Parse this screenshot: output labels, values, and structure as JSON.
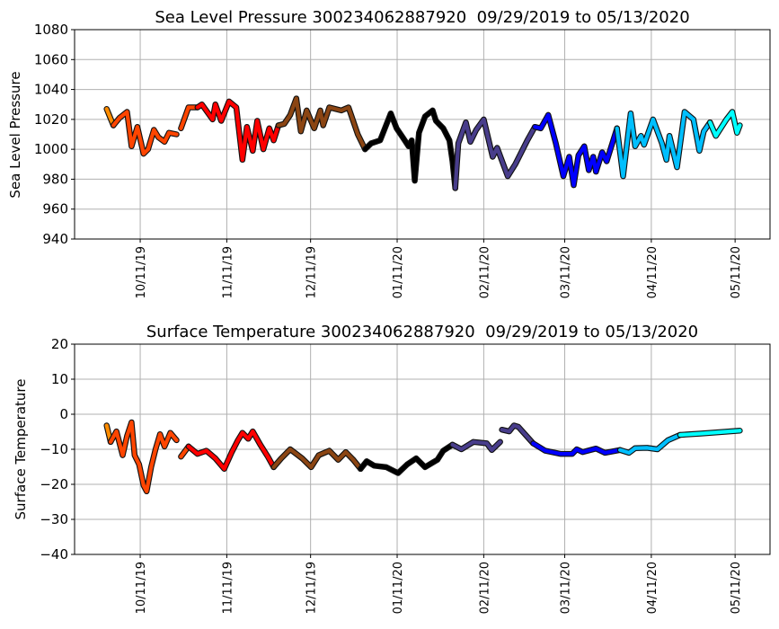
{
  "chart_data": [
    {
      "type": "scatter",
      "title": "Sea Level Pressure 300234062887920  09/29/2019 to 05/13/2020",
      "xlabel": "",
      "ylabel": "Sea Level Pressure",
      "x_units": "days since 09/29/2019",
      "xlim": [
        -11.5,
        237.5
      ],
      "ylim": [
        940,
        1080
      ],
      "yticks": [
        940,
        960,
        980,
        1000,
        1020,
        1040,
        1060,
        1080
      ],
      "xticks": [
        {
          "day": 12,
          "label": "10/11/19"
        },
        {
          "day": 43,
          "label": "11/11/19"
        },
        {
          "day": 73,
          "label": "12/11/19"
        },
        {
          "day": 104,
          "label": "01/11/20"
        },
        {
          "day": 135,
          "label": "02/11/20"
        },
        {
          "day": 164,
          "label": "03/11/20"
        },
        {
          "day": 195,
          "label": "04/11/20"
        },
        {
          "day": 225,
          "label": "05/11/20"
        }
      ],
      "grid": true,
      "series": [
        {
          "name": "orange",
          "color": "#ff8c00",
          "points": [
            [
              0,
              1027
            ],
            [
              2.4,
              1016
            ]
          ]
        },
        {
          "name": "orangered",
          "color": "#ff4500",
          "points": [
            [
              4.6,
              1021
            ],
            [
              7.3,
              1025
            ],
            [
              8.9,
              1002
            ],
            [
              11,
              1015
            ],
            [
              13.2,
              997
            ],
            [
              14.8,
              1000
            ],
            [
              16.9,
              1013
            ],
            [
              18.5,
              1008
            ],
            [
              20.7,
              1005
            ],
            [
              22.3,
              1011
            ],
            [
              25,
              1010
            ]
          ]
        },
        {
          "name": "orangered-2",
          "color": "#ff4500",
          "gap": true,
          "points": [
            [
              26.6,
              1014
            ],
            [
              29.3,
              1028
            ],
            [
              32.5,
              1028
            ]
          ]
        },
        {
          "name": "red",
          "color": "#ff0000",
          "points": [
            [
              34.1,
              1030
            ],
            [
              37.9,
              1020
            ],
            [
              38.9,
              1030
            ],
            [
              41,
              1019
            ],
            [
              43.8,
              1032
            ],
            [
              46.4,
              1028
            ],
            [
              48.6,
              993
            ],
            [
              50.2,
              1015
            ],
            [
              52.3,
              999
            ],
            [
              53.9,
              1019
            ],
            [
              56.1,
              1000
            ],
            [
              58.2,
              1014
            ],
            [
              59.8,
              1006
            ],
            [
              61.5,
              1016
            ]
          ]
        },
        {
          "name": "saddlebrown",
          "color": "#8b4513",
          "points": [
            [
              63.6,
              1017
            ],
            [
              65.7,
              1023
            ],
            [
              67.9,
              1034
            ],
            [
              69.5,
              1012
            ],
            [
              71.6,
              1026
            ],
            [
              74.3,
              1014
            ],
            [
              76.5,
              1026
            ],
            [
              77.5,
              1016
            ],
            [
              79.7,
              1028
            ],
            [
              84,
              1026
            ],
            [
              86.6,
              1028
            ],
            [
              89.9,
              1010
            ],
            [
              92.5,
              1000
            ]
          ]
        },
        {
          "name": "black",
          "color": "#000000",
          "points": [
            [
              94.7,
              1004
            ],
            [
              97.9,
              1006
            ],
            [
              101.7,
              1024
            ],
            [
              103.8,
              1014
            ],
            [
              106,
              1008
            ],
            [
              108.1,
              1002
            ],
            [
              109.2,
              1006
            ],
            [
              110.3,
              979
            ],
            [
              111.8,
              1011
            ],
            [
              114,
              1022
            ],
            [
              116.7,
              1026
            ],
            [
              117.9,
              1019
            ],
            [
              120.5,
              1014
            ],
            [
              122.7,
              1006
            ],
            [
              123.8,
              992
            ],
            [
              124.8,
              974
            ]
          ]
        },
        {
          "name": "darkslateblue",
          "color": "#483d8b",
          "points": [
            [
              125.9,
              1004
            ],
            [
              128.6,
              1018
            ],
            [
              130.2,
              1005
            ],
            [
              132.3,
              1013
            ],
            [
              135,
              1020
            ],
            [
              138.2,
              995
            ],
            [
              139.8,
              1001
            ],
            [
              143.6,
              982
            ],
            [
              146.3,
              990
            ],
            [
              150.6,
              1006
            ],
            [
              153.3,
              1015
            ]
          ]
        },
        {
          "name": "blue",
          "color": "#0000ff",
          "points": [
            [
              155.4,
              1014
            ],
            [
              158.1,
              1023
            ],
            [
              160.8,
              1004
            ],
            [
              163.5,
              982
            ],
            [
              165.6,
              995
            ],
            [
              167.2,
              976
            ],
            [
              168.9,
              996
            ],
            [
              171,
              1002
            ],
            [
              172.6,
              986
            ],
            [
              174.2,
              995
            ],
            [
              175.2,
              985
            ],
            [
              177.4,
              998
            ],
            [
              179,
              992
            ],
            [
              182.7,
              1014
            ]
          ]
        },
        {
          "name": "deepskyblue",
          "color": "#00bfff",
          "points": [
            [
              184.9,
              982
            ],
            [
              187.6,
              1024
            ],
            [
              189.2,
              1002
            ],
            [
              191.3,
              1009
            ],
            [
              192.4,
              1003
            ],
            [
              195.6,
              1020
            ],
            [
              198.8,
              1004
            ],
            [
              200.4,
              993
            ],
            [
              201.5,
              1009
            ],
            [
              204.2,
              988
            ],
            [
              206.9,
              1025
            ],
            [
              210.1,
              1020
            ],
            [
              212.2,
              999
            ],
            [
              213.8,
              1012
            ],
            [
              216,
              1018
            ]
          ]
        },
        {
          "name": "cyan",
          "color": "#00ffff",
          "points": [
            [
              218.1,
              1009
            ],
            [
              221.9,
              1020
            ],
            [
              224,
              1025
            ],
            [
              225.7,
              1011
            ],
            [
              226.7,
              1016
            ]
          ]
        }
      ]
    },
    {
      "type": "scatter",
      "title": "Surface Temperature 300234062887920  09/29/2019 to 05/13/2020",
      "xlabel": "",
      "ylabel": "Surface Temperature",
      "x_units": "days since 09/29/2019",
      "xlim": [
        -11.5,
        237.5
      ],
      "ylim": [
        -40,
        20
      ],
      "yticks": [
        -40,
        -30,
        -20,
        -10,
        0,
        10,
        20
      ],
      "xticks": [
        {
          "day": 12,
          "label": "10/11/19"
        },
        {
          "day": 43,
          "label": "11/11/19"
        },
        {
          "day": 73,
          "label": "12/11/19"
        },
        {
          "day": 104,
          "label": "01/11/20"
        },
        {
          "day": 135,
          "label": "02/11/20"
        },
        {
          "day": 164,
          "label": "03/11/20"
        },
        {
          "day": 195,
          "label": "04/11/20"
        },
        {
          "day": 225,
          "label": "05/11/20"
        }
      ],
      "grid": true,
      "series": [
        {
          "name": "orange",
          "color": "#ff8c00",
          "points": [
            [
              0,
              -3.2
            ],
            [
              1.4,
              -7.9
            ]
          ]
        },
        {
          "name": "orangered",
          "color": "#ff4500",
          "points": [
            [
              3.5,
              -4.9
            ],
            [
              5.7,
              -11.7
            ],
            [
              7.3,
              -6.2
            ],
            [
              8.9,
              -2.3
            ],
            [
              10,
              -11.7
            ],
            [
              11.6,
              -14.3
            ],
            [
              13.2,
              -20.3
            ],
            [
              14.3,
              -22
            ],
            [
              15.9,
              -15.1
            ],
            [
              17.5,
              -10
            ],
            [
              19.1,
              -5.7
            ],
            [
              20.7,
              -9.2
            ],
            [
              22.8,
              -5.3
            ],
            [
              25,
              -7.4
            ]
          ]
        },
        {
          "name": "orangered-2",
          "color": "#ff4500",
          "gap": true,
          "points": [
            [
              26.6,
              -12.1
            ],
            [
              29.3,
              -9.2
            ]
          ]
        },
        {
          "name": "red",
          "color": "#ff0000",
          "points": [
            [
              32.5,
              -11.3
            ],
            [
              35.7,
              -10.4
            ],
            [
              38.9,
              -12.6
            ],
            [
              42.1,
              -15.6
            ],
            [
              44.8,
              -10.8
            ],
            [
              47,
              -7.4
            ],
            [
              48.6,
              -5.3
            ],
            [
              50.7,
              -7
            ],
            [
              52.3,
              -4.9
            ],
            [
              55,
              -8.7
            ],
            [
              57.7,
              -12.1
            ],
            [
              59.8,
              -15.1
            ]
          ]
        },
        {
          "name": "saddlebrown",
          "color": "#8b4513",
          "points": [
            [
              62.5,
              -12.6
            ],
            [
              65.7,
              -10
            ],
            [
              70,
              -12.6
            ],
            [
              73.2,
              -15.1
            ],
            [
              75.9,
              -11.7
            ],
            [
              79.7,
              -10.4
            ],
            [
              82.9,
              -13
            ],
            [
              85.6,
              -10.8
            ],
            [
              88.3,
              -13
            ],
            [
              90.9,
              -15.6
            ]
          ]
        },
        {
          "name": "black",
          "color": "#000000",
          "points": [
            [
              93.1,
              -13.4
            ],
            [
              95.8,
              -14.7
            ],
            [
              100.1,
              -15.1
            ],
            [
              104.3,
              -16.8
            ],
            [
              107.6,
              -14.3
            ],
            [
              110.8,
              -12.6
            ],
            [
              114,
              -15.1
            ],
            [
              116.7,
              -13.8
            ],
            [
              118.4,
              -13
            ],
            [
              120.5,
              -10.4
            ],
            [
              123.8,
              -8.7
            ]
          ]
        },
        {
          "name": "darkslateblue",
          "color": "#483d8b",
          "points": [
            [
              127,
              -10
            ],
            [
              131.3,
              -7.9
            ],
            [
              136.1,
              -8.3
            ],
            [
              137.9,
              -10.2
            ],
            [
              140.9,
              -7.9
            ]
          ]
        },
        {
          "name": "darkslateblue-2",
          "color": "#483d8b",
          "gap": true,
          "points": [
            [
              141.5,
              -4.4
            ],
            [
              144.1,
              -4.9
            ],
            [
              145.8,
              -3.2
            ],
            [
              147.4,
              -3.6
            ],
            [
              152.7,
              -8.3
            ]
          ]
        },
        {
          "name": "blue",
          "color": "#0000ff",
          "points": [
            [
              157,
              -10.4
            ],
            [
              162.4,
              -11.3
            ],
            [
              166.7,
              -11.3
            ],
            [
              168.3,
              -10
            ],
            [
              170.4,
              -10.8
            ],
            [
              175.2,
              -9.8
            ],
            [
              178.4,
              -11
            ],
            [
              183.8,
              -10.2
            ]
          ]
        },
        {
          "name": "deepskyblue",
          "color": "#00bfff",
          "points": [
            [
              187,
              -11
            ],
            [
              189.2,
              -9.7
            ],
            [
              193.5,
              -9.6
            ],
            [
              197.2,
              -10
            ],
            [
              201,
              -7.4
            ],
            [
              205.3,
              -5.9
            ]
          ]
        },
        {
          "name": "cyan",
          "color": "#00ffff",
          "points": [
            [
              212.8,
              -5.5
            ],
            [
              221.4,
              -5
            ],
            [
              226.7,
              -4.7
            ]
          ]
        }
      ]
    }
  ]
}
